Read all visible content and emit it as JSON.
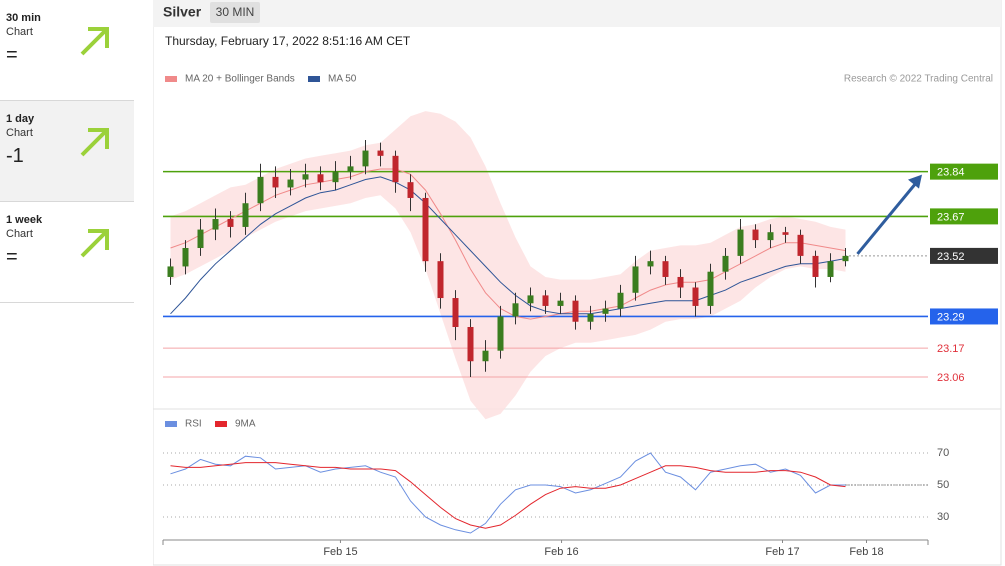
{
  "sidebar": [
    {
      "period": "30 min",
      "label": "Chart",
      "signal": "="
    },
    {
      "period": "1 day",
      "label": "Chart",
      "signal": "-1"
    },
    {
      "period": "1 week",
      "label": "Chart",
      "signal": "="
    }
  ],
  "header": {
    "title": "Silver",
    "tab": "30 MIN",
    "timestamp": "Thursday, February 17, 2022 8:51:16 AM CET",
    "source": "Research © 2022 Trading Central"
  },
  "chart_data": [
    {
      "type": "candlestick",
      "ylim": [
        22.95,
        24.15
      ],
      "xlim": [
        -0.5,
        50.5
      ],
      "up_color": "#3b7d1f",
      "down_color": "#c0262d",
      "candles": [
        [
          23.44,
          23.51,
          23.41,
          23.48
        ],
        [
          23.48,
          23.58,
          23.45,
          23.55
        ],
        [
          23.55,
          23.66,
          23.52,
          23.62
        ],
        [
          23.62,
          23.7,
          23.58,
          23.66
        ],
        [
          23.66,
          23.69,
          23.59,
          23.63
        ],
        [
          23.63,
          23.76,
          23.6,
          23.72
        ],
        [
          23.72,
          23.87,
          23.69,
          23.82
        ],
        [
          23.82,
          23.86,
          23.74,
          23.78
        ],
        [
          23.78,
          23.85,
          23.75,
          23.81
        ],
        [
          23.81,
          23.87,
          23.78,
          23.83
        ],
        [
          23.83,
          23.86,
          23.77,
          23.8
        ],
        [
          23.8,
          23.88,
          23.77,
          23.84
        ],
        [
          23.84,
          23.9,
          23.81,
          23.86
        ],
        [
          23.86,
          23.96,
          23.83,
          23.92
        ],
        [
          23.92,
          23.95,
          23.86,
          23.9
        ],
        [
          23.9,
          23.92,
          23.76,
          23.8
        ],
        [
          23.8,
          23.83,
          23.69,
          23.74
        ],
        [
          23.74,
          23.76,
          23.46,
          23.5
        ],
        [
          23.5,
          23.53,
          23.32,
          23.36
        ],
        [
          23.36,
          23.39,
          23.2,
          23.25
        ],
        [
          23.25,
          23.28,
          23.06,
          23.12
        ],
        [
          23.12,
          23.2,
          23.08,
          23.16
        ],
        [
          23.16,
          23.33,
          23.13,
          23.29
        ],
        [
          23.29,
          23.38,
          23.26,
          23.34
        ],
        [
          23.34,
          23.4,
          23.31,
          23.37
        ],
        [
          23.37,
          23.39,
          23.3,
          23.33
        ],
        [
          23.33,
          23.38,
          23.3,
          23.35
        ],
        [
          23.35,
          23.37,
          23.24,
          23.27
        ],
        [
          23.27,
          23.33,
          23.24,
          23.3
        ],
        [
          23.3,
          23.35,
          23.27,
          23.32
        ],
        [
          23.32,
          23.41,
          23.29,
          23.38
        ],
        [
          23.38,
          23.52,
          23.35,
          23.48
        ],
        [
          23.48,
          23.54,
          23.45,
          23.5
        ],
        [
          23.5,
          23.52,
          23.41,
          23.44
        ],
        [
          23.44,
          23.47,
          23.36,
          23.4
        ],
        [
          23.4,
          23.42,
          23.29,
          23.33
        ],
        [
          23.33,
          23.49,
          23.3,
          23.46
        ],
        [
          23.46,
          23.55,
          23.43,
          23.52
        ],
        [
          23.52,
          23.66,
          23.49,
          23.62
        ],
        [
          23.62,
          23.64,
          23.55,
          23.58
        ],
        [
          23.58,
          23.64,
          23.55,
          23.61
        ],
        [
          23.61,
          23.63,
          23.57,
          23.6
        ],
        [
          23.6,
          23.62,
          23.49,
          23.52
        ],
        [
          23.52,
          23.54,
          23.4,
          23.44
        ],
        [
          23.44,
          23.53,
          23.42,
          23.5
        ],
        [
          23.5,
          23.55,
          23.48,
          23.52
        ]
      ],
      "overlays": [
        {
          "name": "MA 20 + Bollinger Bands",
          "color": "#f08a8a",
          "band_color": "#fde0e0",
          "values": [
            23.55,
            23.57,
            23.6,
            23.63,
            23.66,
            23.69,
            23.72,
            23.75,
            23.77,
            23.79,
            23.8,
            23.81,
            23.82,
            23.84,
            23.85,
            23.85,
            23.83,
            23.77,
            23.68,
            23.58,
            23.47,
            23.38,
            23.32,
            23.29,
            23.28,
            23.29,
            23.3,
            23.31,
            23.31,
            23.32,
            23.33,
            23.36,
            23.39,
            23.41,
            23.42,
            23.42,
            23.43,
            23.46,
            23.49,
            23.52,
            23.55,
            23.57,
            23.57,
            23.56,
            23.55,
            23.54
          ],
          "upper": [
            23.67,
            23.69,
            23.72,
            23.75,
            23.78,
            23.79,
            23.82,
            23.85,
            23.87,
            23.89,
            23.9,
            23.91,
            23.92,
            23.94,
            23.95,
            24.0,
            24.05,
            24.07,
            24.06,
            24.03,
            23.97,
            23.86,
            23.72,
            23.59,
            23.48,
            23.44,
            23.43,
            23.43,
            23.43,
            23.44,
            23.45,
            23.5,
            23.54,
            23.55,
            23.56,
            23.56,
            23.57,
            23.6,
            23.63,
            23.64,
            23.66,
            23.67,
            23.66,
            23.65,
            23.63,
            23.62
          ],
          "lower": [
            23.43,
            23.45,
            23.48,
            23.51,
            23.54,
            23.59,
            23.62,
            23.65,
            23.67,
            23.69,
            23.7,
            23.71,
            23.72,
            23.74,
            23.75,
            23.7,
            23.61,
            23.47,
            23.3,
            23.13,
            22.97,
            22.9,
            22.92,
            22.99,
            23.08,
            23.14,
            23.17,
            23.19,
            23.19,
            23.2,
            23.21,
            23.22,
            23.24,
            23.27,
            23.28,
            23.28,
            23.29,
            23.32,
            23.35,
            23.4,
            23.44,
            23.47,
            23.48,
            23.47,
            23.47,
            23.46
          ]
        },
        {
          "name": "MA 50",
          "color": "#2f5597",
          "values": [
            23.3,
            23.36,
            23.43,
            23.49,
            23.54,
            23.59,
            23.64,
            23.68,
            23.71,
            23.74,
            23.76,
            23.77,
            23.79,
            23.81,
            23.82,
            23.8,
            23.77,
            23.72,
            23.66,
            23.6,
            23.54,
            23.48,
            23.42,
            23.37,
            23.33,
            23.31,
            23.3,
            23.3,
            23.3,
            23.31,
            23.32,
            23.33,
            23.34,
            23.35,
            23.35,
            23.35,
            23.37,
            23.39,
            23.42,
            23.44,
            23.46,
            23.48,
            23.49,
            23.49,
            23.5,
            23.51
          ]
        }
      ],
      "levels": [
        {
          "value": 23.84,
          "color": "#4ea10c",
          "box": true
        },
        {
          "value": 23.67,
          "color": "#4ea10c",
          "box": true
        },
        {
          "value": 23.52,
          "color": "#333333",
          "box": true
        },
        {
          "value": 23.29,
          "color": "#2563eb",
          "box": true
        },
        {
          "value": 23.17,
          "color": "#e0303a",
          "box": false
        },
        {
          "value": 23.06,
          "color": "#e0303a",
          "box": false
        }
      ]
    },
    {
      "type": "line",
      "ylim": [
        19,
        78
      ],
      "xlim": [
        -0.5,
        50.5
      ],
      "yticks": [
        30,
        50,
        70
      ],
      "xticks": [
        {
          "value": 11.33,
          "label": "Feb 15"
        },
        {
          "value": 26.07,
          "label": "Feb 16"
        },
        {
          "value": 40.8,
          "label": "Feb 17"
        },
        {
          "value": 46.4,
          "label": "Feb 18"
        }
      ],
      "series": [
        {
          "name": "RSI",
          "color": "#6b8fe0",
          "values": [
            57,
            60,
            66,
            63,
            62,
            68,
            67,
            60,
            61,
            62,
            58,
            60,
            61,
            62,
            58,
            55,
            40,
            30,
            25,
            22,
            20,
            26,
            38,
            47,
            50,
            50,
            49,
            45,
            47,
            51,
            55,
            65,
            70,
            58,
            55,
            47,
            58,
            60,
            62,
            63,
            58,
            60,
            56,
            45,
            50,
            50
          ]
        },
        {
          "name": "9MA",
          "color": "#e3262d",
          "values": [
            62,
            61,
            61,
            62,
            63,
            64,
            64,
            64,
            63,
            62,
            61,
            61,
            60,
            60,
            60,
            59,
            52,
            44,
            36,
            29,
            25,
            23,
            25,
            31,
            38,
            44,
            48,
            49,
            48,
            48,
            50,
            54,
            58,
            62,
            62,
            61,
            59,
            58,
            58,
            58,
            59,
            59,
            58,
            55,
            50,
            49
          ]
        }
      ]
    }
  ]
}
